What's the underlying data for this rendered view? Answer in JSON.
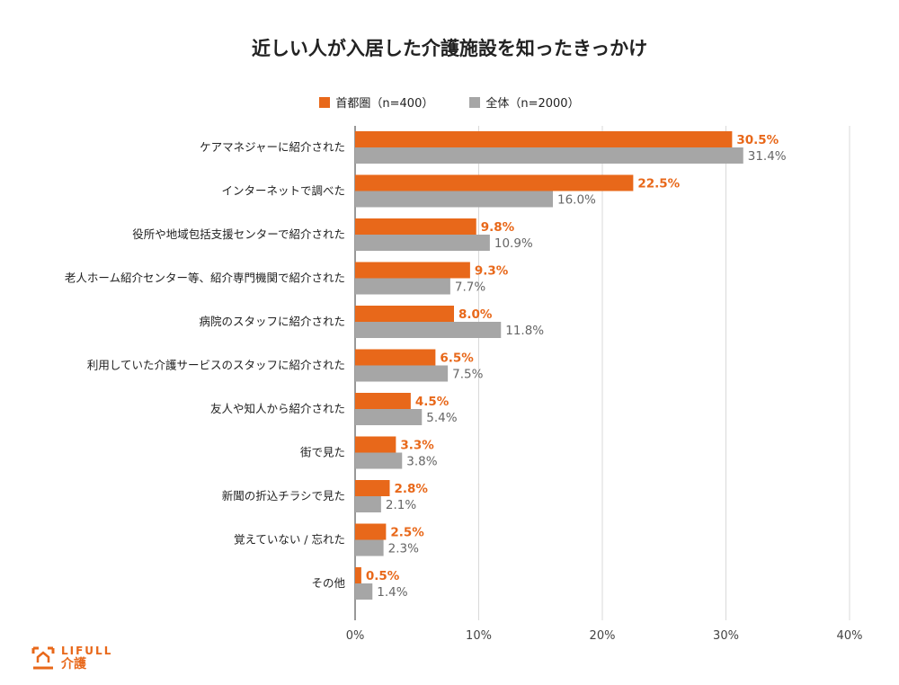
{
  "chart_data": {
    "type": "bar",
    "orientation": "horizontal",
    "title": "近しい人が入居した介護施設を知ったきっかけ",
    "categories": [
      "ケアマネジャーに紹介された",
      "インターネットで調べた",
      "役所や地域包括支援センターで紹介された",
      "老人ホーム紹介センター等、紹介専門機関で紹介された",
      "病院のスタッフに紹介された",
      "利用していた介護サービスのスタッフに紹介された",
      "友人や知人から紹介された",
      "街で見た",
      "新聞の折込チラシで見た",
      "覚えていない / 忘れた",
      "その他"
    ],
    "series": [
      {
        "name": "首都圏（n=400）",
        "color": "#e8681a",
        "values": [
          30.5,
          22.5,
          9.8,
          9.3,
          8.0,
          6.5,
          4.5,
          3.3,
          2.8,
          2.5,
          0.5
        ],
        "labels": [
          "30.5%",
          "22.5%",
          "9.8%",
          "9.3%",
          "8.0%",
          "6.5%",
          "4.5%",
          "3.3%",
          "2.8%",
          "2.5%",
          "0.5%"
        ]
      },
      {
        "name": "全体（n=2000）",
        "color": "#a6a6a6",
        "values": [
          31.4,
          16.0,
          10.9,
          7.7,
          11.8,
          7.5,
          5.4,
          3.8,
          2.1,
          2.3,
          1.4
        ],
        "labels": [
          "31.4%",
          "16.0%",
          "10.9%",
          "7.7%",
          "11.8%",
          "7.5%",
          "5.4%",
          "3.8%",
          "2.1%",
          "2.3%",
          "1.4%"
        ]
      }
    ],
    "xlim": [
      0,
      40
    ],
    "xticks": [
      0,
      10,
      20,
      30,
      40
    ],
    "xtick_labels": [
      "0%",
      "10%",
      "20%",
      "30%",
      "40%"
    ],
    "grid": true,
    "legend_position": "top-center"
  },
  "logo": {
    "brand": "LIFULL",
    "sub": "介護"
  }
}
